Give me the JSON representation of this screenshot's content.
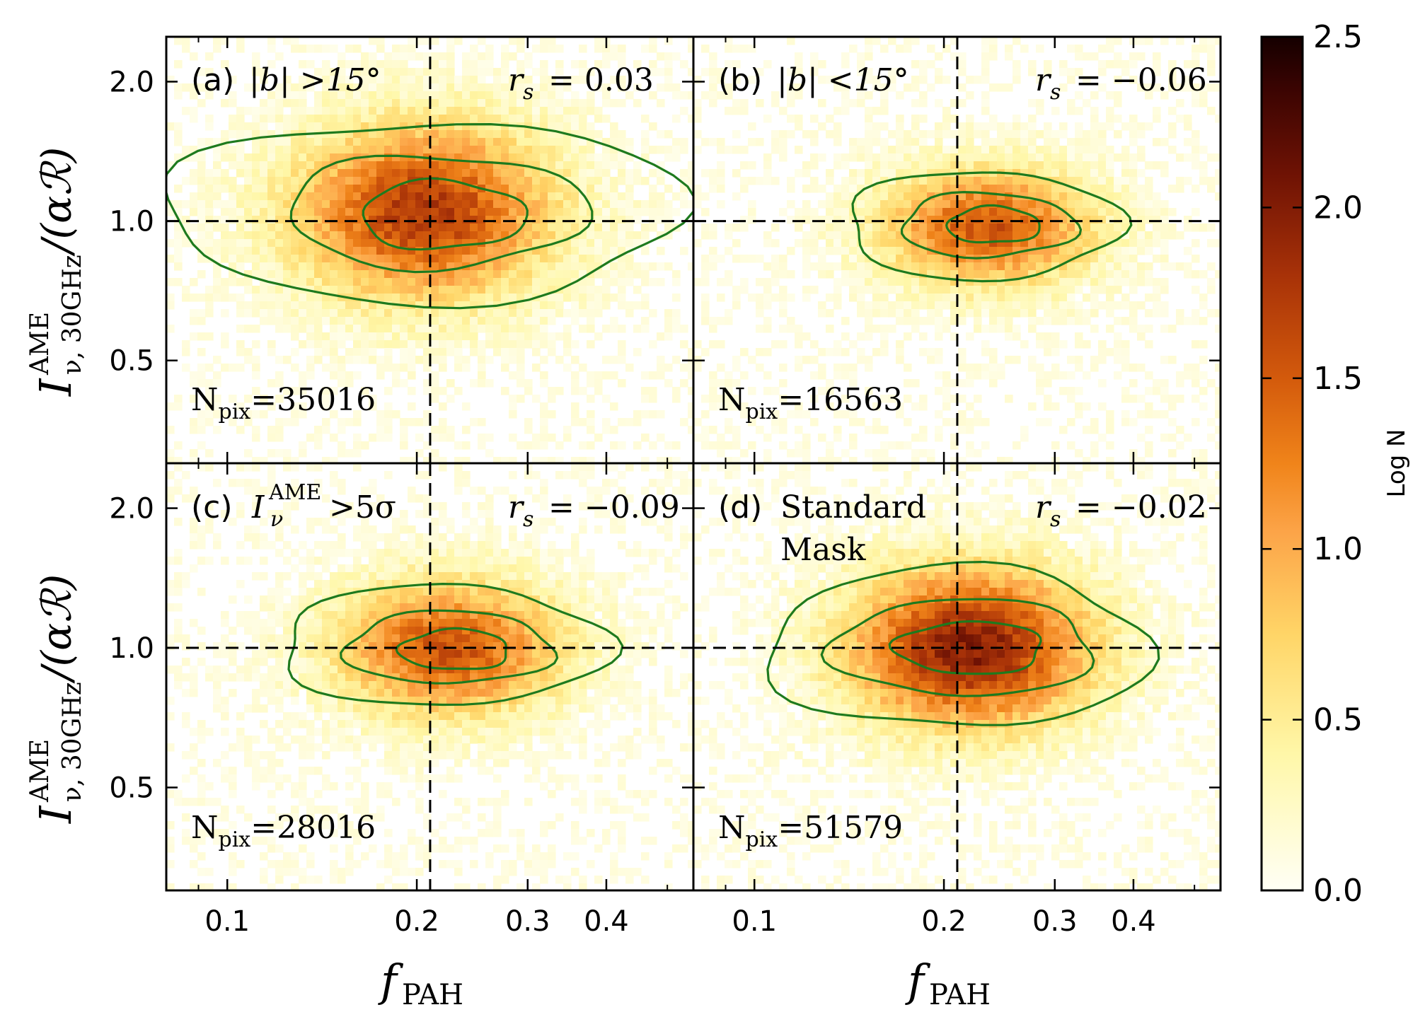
{
  "figure": {
    "x_axis_label": "f",
    "x_axis_label_sub": "PAH",
    "y_axis_label_main": "I",
    "y_axis_label_sup": "AME",
    "y_axis_label_sub": "ν, 30GHz",
    "y_axis_label_tail": "/(αℛ)",
    "colorbar_label": "Log N",
    "colorbar_ticks": [
      "0.0",
      "0.5",
      "1.0",
      "1.5",
      "2.0",
      "2.5"
    ],
    "x_tick_labels": [
      "0.1",
      "0.2",
      "0.3",
      "0.4"
    ],
    "y_tick_labels": [
      "0.5",
      "1.0",
      "2.0"
    ]
  },
  "panels": [
    {
      "id": "a",
      "label_paren": "(a)",
      "label_text": "|b| >15°",
      "rs_prefix": "r",
      "rs_sub": "s",
      "rs_value": "= 0.03",
      "npix_prefix": "N",
      "npix_sub": "pix",
      "npix_value": "=35016"
    },
    {
      "id": "b",
      "label_paren": "(b)",
      "label_text": "|b| <15°",
      "rs_prefix": "r",
      "rs_sub": "s",
      "rs_value": "= −0.06",
      "npix_prefix": "N",
      "npix_sub": "pix",
      "npix_value": "=16563"
    },
    {
      "id": "c",
      "label_paren": "(c)",
      "label_text": "I",
      "label_sup": "AME",
      "label_sub": "ν",
      "label_tail": " >5σ",
      "rs_prefix": "r",
      "rs_sub": "s",
      "rs_value": "= −0.09",
      "npix_prefix": "N",
      "npix_sub": "pix",
      "npix_value": "=28016"
    },
    {
      "id": "d",
      "label_paren": "(d)",
      "label_text": "Standard",
      "label_text2": "Mask",
      "rs_prefix": "r",
      "rs_sub": "s",
      "rs_value": "= −0.02",
      "npix_prefix": "N",
      "npix_sub": "pix",
      "npix_value": "=51579"
    }
  ],
  "chart_data": {
    "type": "heatmap",
    "x_scale": "log",
    "y_scale": "log",
    "xlim": [
      0.08,
      0.55
    ],
    "ylim": [
      0.3,
      2.5
    ],
    "x_ticks": [
      0.1,
      0.2,
      0.3,
      0.4
    ],
    "y_ticks": [
      0.5,
      1.0,
      2.0
    ],
    "colorbar": {
      "label": "Log N",
      "range": [
        0.0,
        2.5
      ],
      "ticks": [
        0.0,
        0.5,
        1.0,
        1.5,
        2.0,
        2.5
      ]
    },
    "reference_lines": {
      "x": 0.21,
      "y": 1.0,
      "style": "dashed"
    },
    "panels": [
      {
        "id": "a",
        "npix": 35016,
        "rs": 0.03,
        "center": [
          0.205,
          1.05
        ],
        "peak_logN": 1.75,
        "spread": [
          0.32,
          0.3
        ],
        "contour_levels": [
          {
            "center": [
              0.205,
              1.05
            ],
            "half_width": [
              0.95,
              0.45
            ]
          },
          {
            "center": [
              0.215,
              1.05
            ],
            "half_width": [
              0.55,
              0.28
            ]
          },
          {
            "center": [
              0.22,
              1.03
            ],
            "half_width": [
              0.3,
              0.17
            ]
          }
        ]
      },
      {
        "id": "b",
        "npix": 16563,
        "rs": -0.06,
        "center": [
          0.235,
          0.97
        ],
        "peak_logN": 1.55,
        "spread": [
          0.26,
          0.2
        ],
        "contour_levels": [
          {
            "center": [
              0.23,
              0.98
            ],
            "half_width": [
              0.5,
              0.27
            ]
          },
          {
            "center": [
              0.235,
              0.98
            ],
            "half_width": [
              0.32,
              0.16
            ]
          },
          {
            "center": [
              0.24,
              0.98
            ],
            "half_width": [
              0.17,
              0.09
            ]
          }
        ]
      },
      {
        "id": "c",
        "npix": 28016,
        "rs": -0.09,
        "center": [
          0.225,
          1.0
        ],
        "peak_logN": 1.55,
        "spread": [
          0.28,
          0.23
        ],
        "contour_levels": [
          {
            "center": [
              0.22,
              1.01
            ],
            "half_width": [
              0.6,
              0.3
            ]
          },
          {
            "center": [
              0.225,
              1.0
            ],
            "half_width": [
              0.38,
              0.18
            ]
          },
          {
            "center": [
              0.23,
              0.99
            ],
            "half_width": [
              0.2,
              0.1
            ]
          }
        ]
      },
      {
        "id": "d",
        "npix": 51579,
        "rs": -0.02,
        "center": [
          0.22,
          1.0
        ],
        "peak_logN": 2.0,
        "spread": [
          0.3,
          0.27
        ],
        "contour_levels": [
          {
            "center": [
              0.21,
              1.0
            ],
            "half_width": [
              0.7,
              0.4
            ]
          },
          {
            "center": [
              0.215,
              1.0
            ],
            "half_width": [
              0.48,
              0.24
            ]
          },
          {
            "center": [
              0.22,
              1.0
            ],
            "half_width": [
              0.27,
              0.13
            ]
          }
        ]
      }
    ]
  }
}
